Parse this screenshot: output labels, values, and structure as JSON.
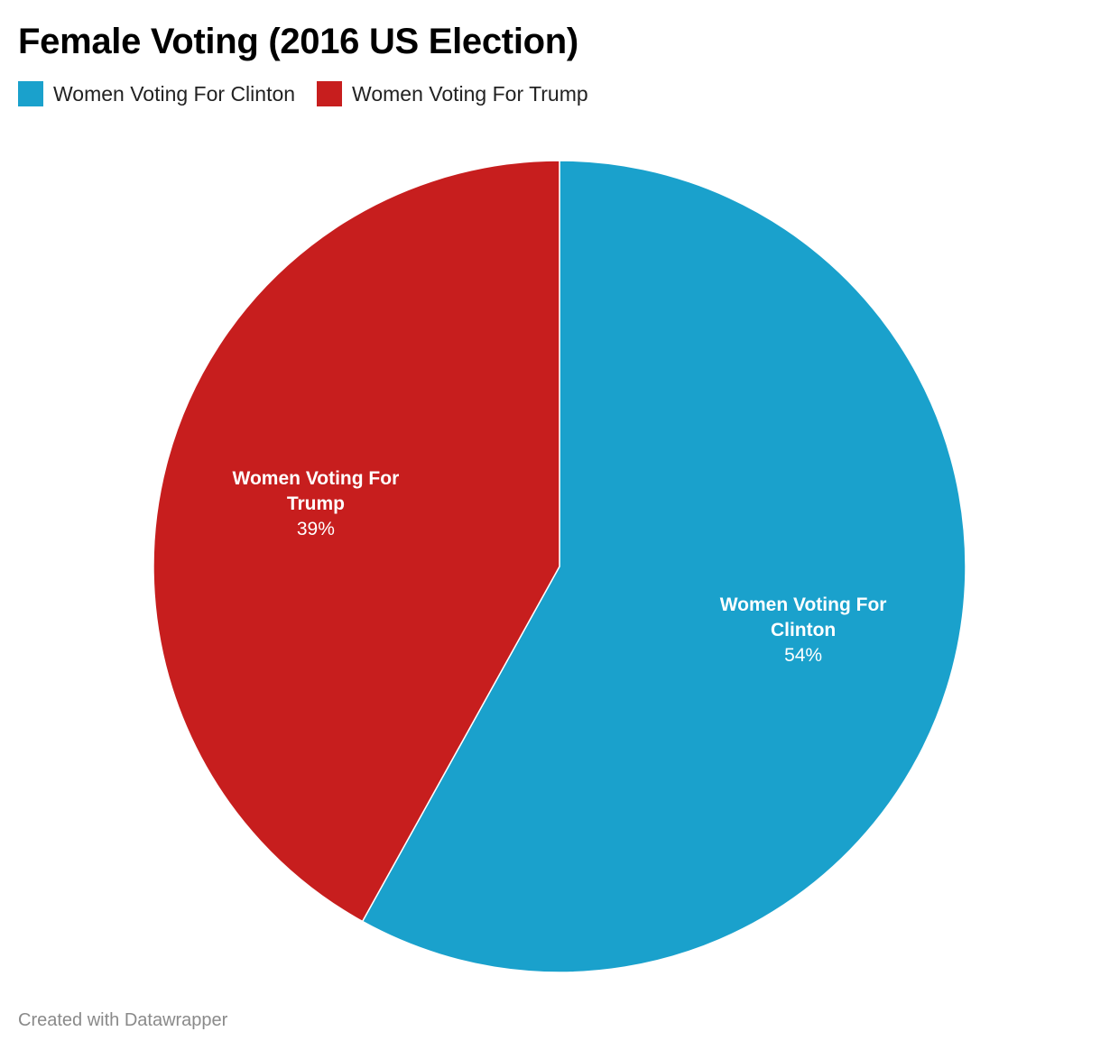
{
  "title": "Female Voting (2016 US Election)",
  "legend": [
    {
      "label": "Women Voting For Clinton",
      "color": "#1aa1cc"
    },
    {
      "label": "Women Voting For Trump",
      "color": "#c71e1e"
    }
  ],
  "chart_data": {
    "type": "pie",
    "title": "Female Voting (2016 US Election)",
    "legend_position": "top-left",
    "slices": [
      {
        "name": "Women Voting For Clinton",
        "value": 54,
        "value_label": "54%",
        "label_lines": [
          "Women Voting For",
          "Clinton"
        ],
        "color": "#1aa1cc"
      },
      {
        "name": "Women Voting For Trump",
        "value": 39,
        "value_label": "39%",
        "label_lines": [
          "Women Voting For",
          "Trump"
        ],
        "color": "#c71e1e"
      }
    ]
  },
  "footer": "Created with Datawrapper"
}
